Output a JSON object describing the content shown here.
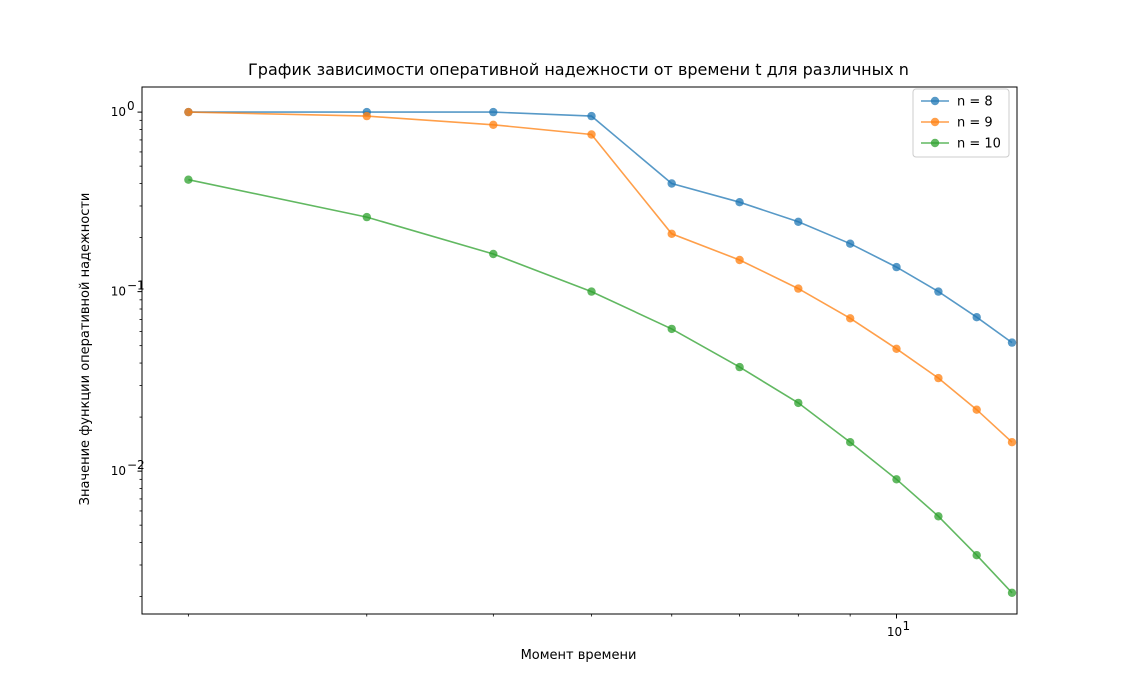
{
  "chart_data": {
    "type": "line",
    "title": "График зависимости оперативной надежности от времени t для различных n",
    "xlabel": "Момент времени",
    "ylabel": "Значение функции оперативной надежности",
    "xscale": "log",
    "yscale": "log",
    "xlim": [
      1.8,
      13.15
    ],
    "ylim": [
      0.0016,
      1.38
    ],
    "x": [
      2,
      4,
      6,
      8,
      10,
      11,
      12,
      13
    ],
    "xticks": [
      {
        "value": 10,
        "label": "10"
      }
    ],
    "yticks": [
      {
        "value": 0.01,
        "label": "10"
      },
      {
        "value": 0.1,
        "label": "10"
      },
      {
        "value": 1,
        "label": "10"
      }
    ],
    "ytick_exponents": [
      "-2",
      "-1",
      "0"
    ],
    "xtick_exponents": [
      "1"
    ],
    "legend_position": "top-right",
    "series": [
      {
        "name": "n = 8",
        "color": "#1f77b4",
        "x": [
          2,
          3,
          4,
          5,
          6,
          7,
          8,
          9,
          10,
          11,
          12,
          13
        ],
        "values": [
          1.0,
          1.0,
          1.0,
          0.95,
          0.4,
          0.315,
          0.245,
          0.185,
          0.137,
          0.1,
          0.072,
          0.052
        ]
      },
      {
        "name": "n = 9",
        "color": "#ff7f0e",
        "x": [
          2,
          3,
          4,
          5,
          6,
          7,
          8,
          9,
          10,
          11,
          12,
          13
        ],
        "values": [
          1.0,
          0.95,
          0.85,
          0.75,
          0.21,
          0.15,
          0.104,
          0.071,
          0.048,
          0.033,
          0.022,
          0.0145
        ]
      },
      {
        "name": "n = 10",
        "color": "#2ca02c",
        "x": [
          2,
          3,
          4,
          5,
          6,
          7,
          8,
          9,
          10,
          11,
          12,
          13
        ],
        "values": [
          0.42,
          0.26,
          0.162,
          0.1,
          0.062,
          0.038,
          0.024,
          0.0145,
          0.009,
          0.0056,
          0.0034,
          0.0021
        ]
      }
    ]
  }
}
